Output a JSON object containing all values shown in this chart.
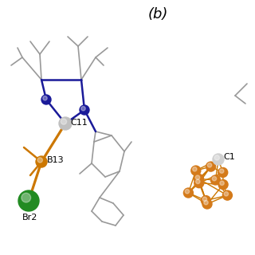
{
  "title_b": "(b)",
  "title_fontsize": 13,
  "bg_color": "#ffffff",
  "label_C11": "C11",
  "label_B13": "B13",
  "label_Br2": "Br2",
  "label_C1": "C1",
  "bond_color_gray": "#999999",
  "bond_color_blue": "#1a1a99",
  "bond_color_orange": "#cc7700",
  "atom_C_color": "#cccccc",
  "atom_N_color": "#1a1a99",
  "atom_B_color": "#cc7700",
  "atom_Br_color": "#228B22",
  "atom_orange_color": "#d47a1a",
  "label_fontsize": 7,
  "label_color": "#000000",
  "lw_gray": 1.2,
  "lw_blue": 1.8,
  "lw_orange": 1.8,
  "lw_cage": 1.0
}
